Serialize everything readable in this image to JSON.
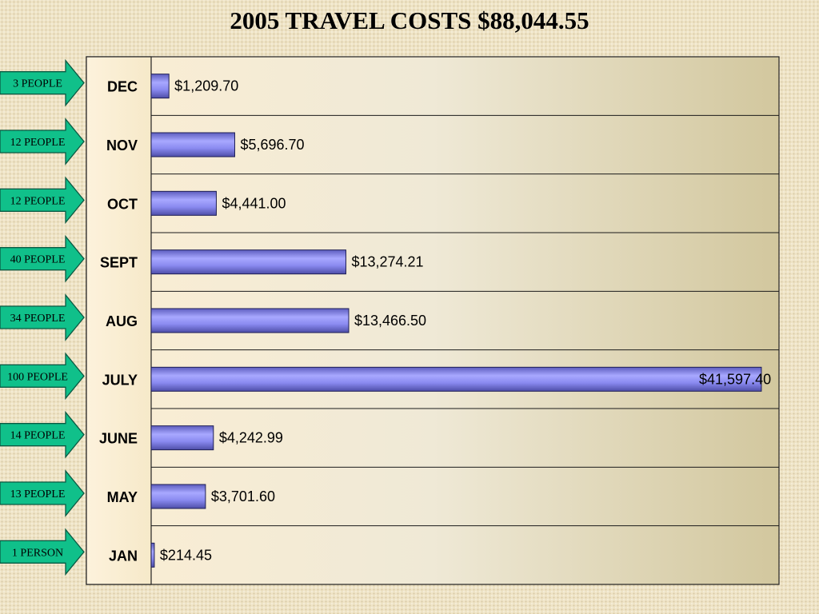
{
  "chart_data": {
    "type": "bar",
    "orientation": "horizontal",
    "title": "2005 TRAVEL COSTS $88,044.55",
    "xlabel": "",
    "ylabel": "",
    "xlim": [
      0,
      42800
    ],
    "grid": true,
    "legend": "none",
    "categories": [
      "DEC",
      "NOV",
      "OCT",
      "SEPT",
      "AUG",
      "JULY",
      "JUNE",
      "MAY",
      "JAN"
    ],
    "values": [
      1209.7,
      5696.7,
      4441.0,
      13274.21,
      13466.5,
      41597.4,
      4242.99,
      3701.6,
      214.45
    ],
    "data_labels": [
      "$1,209.70",
      "$5,696.70",
      "$4,441.00",
      "$13,274.21",
      "$13,466.50",
      "$41,597.40",
      "$4,242.99",
      "$3,701.60",
      "$214.45"
    ],
    "annotations": [
      "3 PEOPLE",
      "12 PEOPLE",
      "12 PEOPLE",
      "40 PEOPLE",
      "34 PEOPLE",
      "100 PEOPLE",
      "14 PEOPLE",
      "13 PEOPLE",
      "1 PERSON"
    ],
    "bar_color": "#8c8cf2",
    "arrow_color": "#10c08a"
  }
}
